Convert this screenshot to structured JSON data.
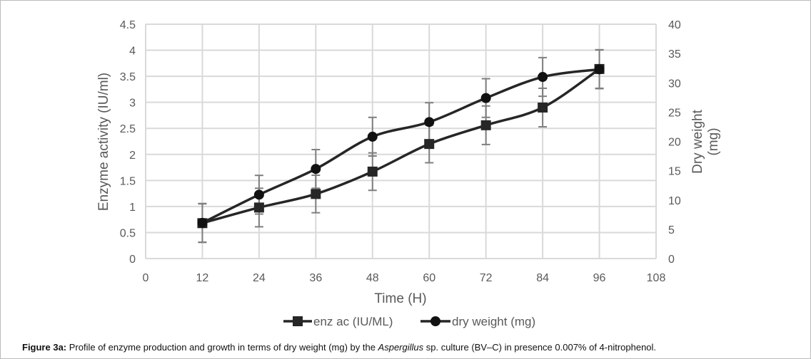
{
  "chart_data": {
    "type": "line",
    "x": [
      12,
      24,
      36,
      48,
      60,
      72,
      84,
      96
    ],
    "xlabel": "Time (H)",
    "xlim": [
      0,
      108
    ],
    "xticks": [
      0,
      12,
      24,
      36,
      48,
      60,
      72,
      84,
      96,
      108
    ],
    "ylabel": "Enzyme  activity (IU/ml)",
    "ylim": [
      0,
      4.5
    ],
    "yticks": [
      "0",
      "0.5",
      "1",
      "1.5",
      "2",
      "2.5",
      "3",
      "3.5",
      "4",
      "4.5"
    ],
    "y2label_line1": "Dry weight",
    "y2label_line2": "(mg)",
    "y2lim": [
      0,
      40
    ],
    "y2ticks": [
      "0",
      "5",
      "10",
      "15",
      "20",
      "25",
      "30",
      "35",
      "40"
    ],
    "grid": true,
    "legend_position": "bottom",
    "series": [
      {
        "name": "enz ac (IU/ML)",
        "axis": "left",
        "marker": "square",
        "values": [
          0.68,
          0.98,
          1.24,
          1.67,
          2.2,
          2.56,
          2.9,
          3.64
        ],
        "errors": [
          0.37,
          0.37,
          0.36,
          0.36,
          0.36,
          0.37,
          0.37,
          0.37
        ]
      },
      {
        "name": "dry weight (mg)",
        "axis": "right",
        "marker": "circle",
        "values": [
          6.1,
          10.9,
          15.3,
          20.8,
          23.3,
          27.4,
          31.0,
          32.3
        ],
        "errors": [
          3.3,
          3.3,
          3.3,
          3.3,
          3.3,
          3.3,
          3.3,
          3.3
        ]
      }
    ],
    "colors": {
      "line": "#262626",
      "error": "#7f7f7f",
      "grid": "#d9d9d9",
      "text": "#595959"
    }
  },
  "caption": {
    "label": "Figure 3a:",
    "text_before": " Profile of enzyme production and growth in terms of dry weight (mg) by the ",
    "italic": "Aspergillus",
    "text_after": " sp. culture (BV–C) in presence 0.007% of 4-nitrophenol."
  }
}
